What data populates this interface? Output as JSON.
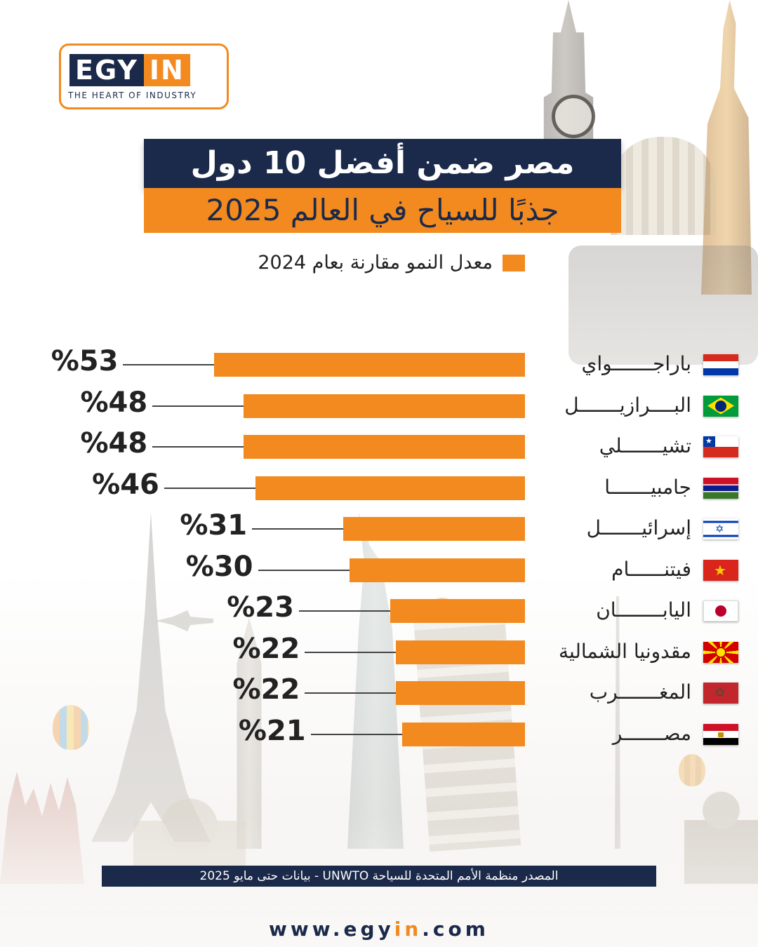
{
  "logo": {
    "part1": "EGY",
    "part2": "IN",
    "tagline": "THE HEART OF INDUSTRY"
  },
  "title": {
    "line1": "مصر ضمن أفضل 10 دول",
    "line2": "جذبًا للسياح في العالم 2025"
  },
  "legend": {
    "label": "معدل النمو مقارنة بعام 2024"
  },
  "chart_data": {
    "type": "bar",
    "orientation": "horizontal",
    "categories": [
      "باراجـــــــواي",
      "البــــرازيـــــــل",
      "تشيـــــــلي",
      "جامبيـــــــا",
      "إسرائيـــــــل",
      "فيتنــــــام",
      "اليابــــــــان",
      "مقدونيا الشمالية",
      "المغـــــــرب",
      "مصـــــــر"
    ],
    "values": [
      53,
      48,
      48,
      46,
      31,
      30,
      23,
      22,
      22,
      21
    ],
    "value_labels": [
      "%53",
      "%48",
      "%48",
      "%46",
      "%31",
      "%30",
      "%23",
      "%22",
      "%22",
      "%21"
    ],
    "flags": [
      "paraguay",
      "brazil",
      "chile",
      "gambia",
      "israel",
      "vietnam",
      "japan",
      "macedonia",
      "morocco",
      "egypt"
    ],
    "unit": "%",
    "bar_color": "#f28a1f",
    "xlim": [
      0,
      55
    ],
    "grid": false,
    "legend_position": "top-right"
  },
  "colors": {
    "navy": "#1b2a4a",
    "orange": "#f28a1f"
  },
  "footer": {
    "source": "المصدر منظمة الأمم المتحدة للسياحة UNWTO - بيانات حتى مايو 2025",
    "website_prefix": "www.egy",
    "website_highlight": "in",
    "website_suffix": ".com"
  }
}
